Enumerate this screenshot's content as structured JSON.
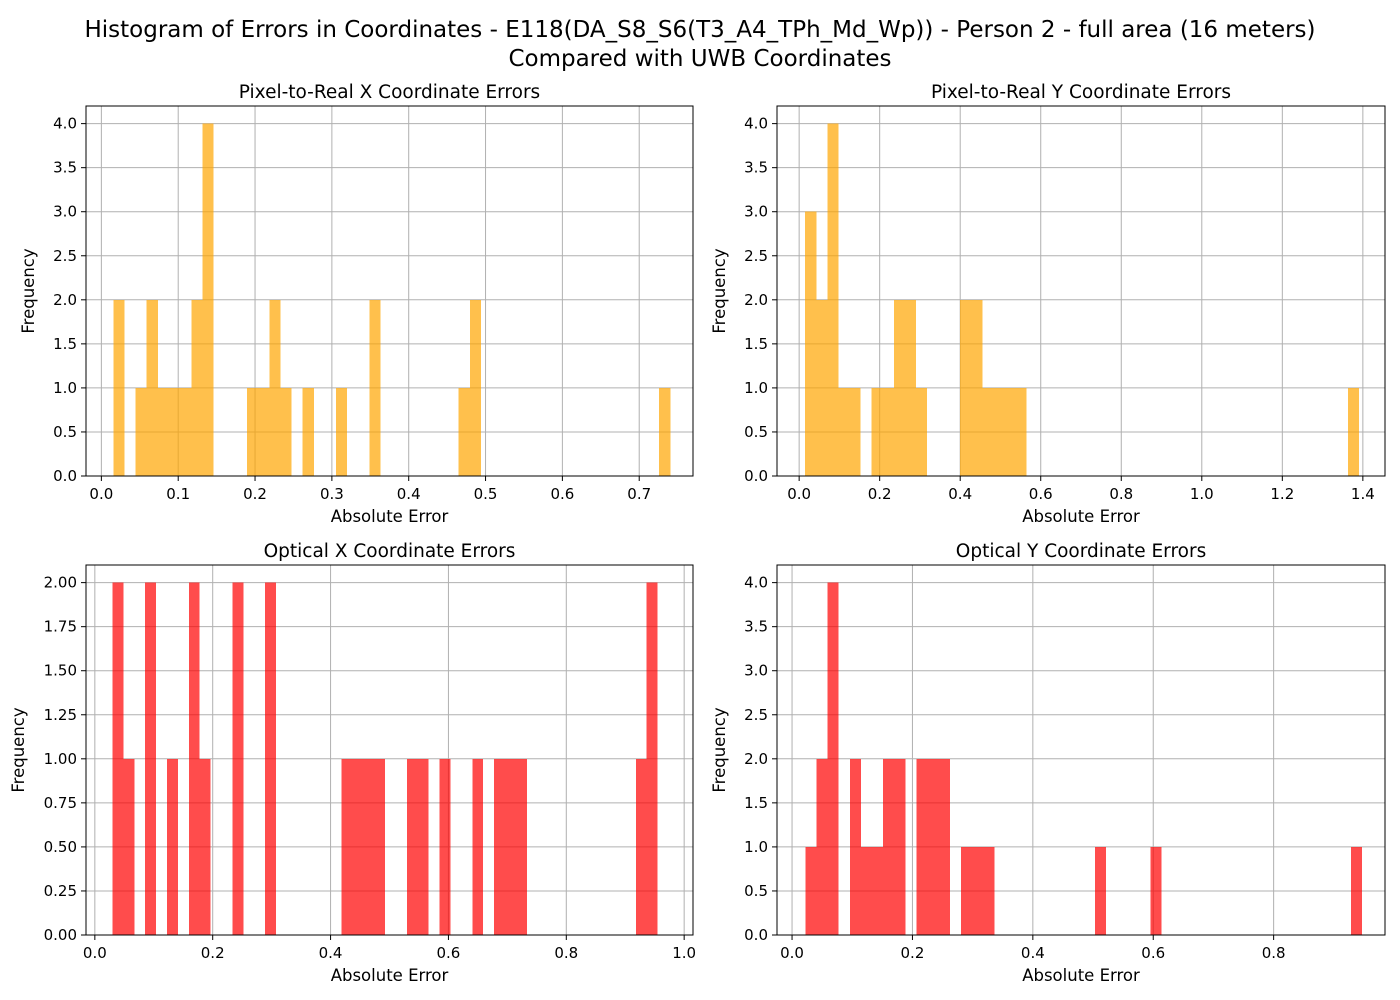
{
  "figure": {
    "title_line1": "Histogram of Errors in Coordinates - E118(DA_S8_S6(T3_A4_TPh_Md_Wp)) - Person 2 - full area (16 meters)",
    "title_line2": "Compared with UWB Coordinates"
  },
  "chart_data": [
    {
      "type": "bar",
      "title": "Pixel-to-Real X Coordinate Errors",
      "xlabel": "Absolute Error",
      "ylabel": "Frequency",
      "color": "#FFA500",
      "opacity": 0.7,
      "grid": true,
      "xlim": [
        -0.02,
        0.77
      ],
      "ylim": [
        0,
        4.2
      ],
      "xticks": [
        0.0,
        0.1,
        0.2,
        0.3,
        0.4,
        0.5,
        0.6,
        0.7
      ],
      "xtick_labels": [
        "0.0",
        "0.1",
        "0.2",
        "0.3",
        "0.4",
        "0.5",
        "0.6",
        "0.7"
      ],
      "yticks": [
        0,
        0.5,
        1.0,
        1.5,
        2.0,
        2.5,
        3.0,
        3.5,
        4.0
      ],
      "ytick_labels": [
        "0.0",
        "0.5",
        "1.0",
        "1.5",
        "2.0",
        "2.5",
        "3.0",
        "3.5",
        "4.0"
      ],
      "bins": [
        {
          "x0": 0.0155,
          "x1": 0.03,
          "count": 2
        },
        {
          "x0": 0.0445,
          "x1": 0.059,
          "count": 1
        },
        {
          "x0": 0.059,
          "x1": 0.0735,
          "count": 2
        },
        {
          "x0": 0.0735,
          "x1": 0.088,
          "count": 1
        },
        {
          "x0": 0.088,
          "x1": 0.1025,
          "count": 1
        },
        {
          "x0": 0.1025,
          "x1": 0.117,
          "count": 1
        },
        {
          "x0": 0.117,
          "x1": 0.1315,
          "count": 2
        },
        {
          "x0": 0.1315,
          "x1": 0.146,
          "count": 4
        },
        {
          "x0": 0.1895,
          "x1": 0.204,
          "count": 1
        },
        {
          "x0": 0.204,
          "x1": 0.2185,
          "count": 1
        },
        {
          "x0": 0.2185,
          "x1": 0.233,
          "count": 2
        },
        {
          "x0": 0.233,
          "x1": 0.2475,
          "count": 1
        },
        {
          "x0": 0.262,
          "x1": 0.2765,
          "count": 1
        },
        {
          "x0": 0.3055,
          "x1": 0.32,
          "count": 1
        },
        {
          "x0": 0.349,
          "x1": 0.3635,
          "count": 2
        },
        {
          "x0": 0.465,
          "x1": 0.4795,
          "count": 1
        },
        {
          "x0": 0.4795,
          "x1": 0.494,
          "count": 2
        },
        {
          "x0": 0.726,
          "x1": 0.7405,
          "count": 1
        }
      ]
    },
    {
      "type": "bar",
      "title": "Pixel-to-Real Y Coordinate Errors",
      "xlabel": "Absolute Error",
      "ylabel": "Frequency",
      "color": "#FFA500",
      "opacity": 0.7,
      "grid": true,
      "xlim": [
        -0.055,
        1.455
      ],
      "ylim": [
        0,
        4.2
      ],
      "xticks": [
        0.0,
        0.2,
        0.4,
        0.6,
        0.8,
        1.0,
        1.2,
        1.4
      ],
      "xtick_labels": [
        "0.0",
        "0.2",
        "0.4",
        "0.6",
        "0.8",
        "1.0",
        "1.2",
        "1.4"
      ],
      "yticks": [
        0,
        0.5,
        1.0,
        1.5,
        2.0,
        2.5,
        3.0,
        3.5,
        4.0
      ],
      "ytick_labels": [
        "0.0",
        "0.5",
        "1.0",
        "1.5",
        "2.0",
        "2.5",
        "3.0",
        "3.5",
        "4.0"
      ],
      "bins": [
        {
          "x0": 0.015,
          "x1": 0.0425,
          "count": 3
        },
        {
          "x0": 0.0425,
          "x1": 0.07,
          "count": 2
        },
        {
          "x0": 0.07,
          "x1": 0.0975,
          "count": 4
        },
        {
          "x0": 0.0975,
          "x1": 0.125,
          "count": 1
        },
        {
          "x0": 0.125,
          "x1": 0.1525,
          "count": 1
        },
        {
          "x0": 0.18,
          "x1": 0.2075,
          "count": 1
        },
        {
          "x0": 0.2075,
          "x1": 0.235,
          "count": 1
        },
        {
          "x0": 0.235,
          "x1": 0.2625,
          "count": 2
        },
        {
          "x0": 0.2625,
          "x1": 0.29,
          "count": 2
        },
        {
          "x0": 0.29,
          "x1": 0.3175,
          "count": 1
        },
        {
          "x0": 0.4,
          "x1": 0.4275,
          "count": 2
        },
        {
          "x0": 0.4275,
          "x1": 0.455,
          "count": 2
        },
        {
          "x0": 0.455,
          "x1": 0.4825,
          "count": 1
        },
        {
          "x0": 0.4825,
          "x1": 0.51,
          "count": 1
        },
        {
          "x0": 0.51,
          "x1": 0.5375,
          "count": 1
        },
        {
          "x0": 0.5375,
          "x1": 0.565,
          "count": 1
        },
        {
          "x0": 1.3625,
          "x1": 1.39,
          "count": 1
        }
      ]
    },
    {
      "type": "bar",
      "title": "Optical X Coordinate Errors",
      "xlabel": "Absolute Error",
      "ylabel": "Frequency",
      "color": "#FF0000",
      "opacity": 0.7,
      "grid": true,
      "xlim": [
        -0.015,
        1.015
      ],
      "ylim": [
        0,
        2.1
      ],
      "xticks": [
        0.0,
        0.2,
        0.4,
        0.6,
        0.8,
        1.0
      ],
      "xtick_labels": [
        "0.0",
        "0.2",
        "0.4",
        "0.6",
        "0.8",
        "1.0"
      ],
      "yticks": [
        0,
        0.25,
        0.5,
        0.75,
        1.0,
        1.25,
        1.5,
        1.75,
        2.0
      ],
      "ytick_labels": [
        "0.00",
        "0.25",
        "0.50",
        "0.75",
        "1.00",
        "1.25",
        "1.50",
        "1.75",
        "2.00"
      ],
      "bins": [
        {
          "x0": 0.03,
          "x1": 0.0485,
          "count": 2
        },
        {
          "x0": 0.0485,
          "x1": 0.067,
          "count": 1
        },
        {
          "x0": 0.0855,
          "x1": 0.104,
          "count": 2
        },
        {
          "x0": 0.1225,
          "x1": 0.141,
          "count": 1
        },
        {
          "x0": 0.1595,
          "x1": 0.178,
          "count": 2
        },
        {
          "x0": 0.178,
          "x1": 0.1965,
          "count": 1
        },
        {
          "x0": 0.2335,
          "x1": 0.252,
          "count": 2
        },
        {
          "x0": 0.289,
          "x1": 0.3075,
          "count": 2
        },
        {
          "x0": 0.4185,
          "x1": 0.437,
          "count": 1
        },
        {
          "x0": 0.437,
          "x1": 0.4555,
          "count": 1
        },
        {
          "x0": 0.4555,
          "x1": 0.474,
          "count": 1
        },
        {
          "x0": 0.474,
          "x1": 0.4925,
          "count": 1
        },
        {
          "x0": 0.5295,
          "x1": 0.548,
          "count": 1
        },
        {
          "x0": 0.548,
          "x1": 0.5665,
          "count": 1
        },
        {
          "x0": 0.585,
          "x1": 0.6035,
          "count": 1
        },
        {
          "x0": 0.6405,
          "x1": 0.659,
          "count": 1
        },
        {
          "x0": 0.6775,
          "x1": 0.696,
          "count": 1
        },
        {
          "x0": 0.696,
          "x1": 0.7145,
          "count": 1
        },
        {
          "x0": 0.7145,
          "x1": 0.733,
          "count": 1
        },
        {
          "x0": 0.918,
          "x1": 0.9365,
          "count": 1
        },
        {
          "x0": 0.9365,
          "x1": 0.955,
          "count": 2
        }
      ]
    },
    {
      "type": "bar",
      "title": "Optical Y Coordinate Errors",
      "xlabel": "Absolute Error",
      "ylabel": "Frequency",
      "color": "#FF0000",
      "opacity": 0.7,
      "grid": true,
      "xlim": [
        -0.025,
        0.985
      ],
      "ylim": [
        0,
        4.2
      ],
      "xticks": [
        0.0,
        0.2,
        0.4,
        0.6,
        0.8
      ],
      "xtick_labels": [
        "0.0",
        "0.2",
        "0.4",
        "0.6",
        "0.8"
      ],
      "yticks": [
        0,
        0.5,
        1.0,
        1.5,
        2.0,
        2.5,
        3.0,
        3.5,
        4.0
      ],
      "ytick_labels": [
        "0.0",
        "0.5",
        "1.0",
        "1.5",
        "2.0",
        "2.5",
        "3.0",
        "3.5",
        "4.0"
      ],
      "bins": [
        {
          "x0": 0.022,
          "x1": 0.0405,
          "count": 1
        },
        {
          "x0": 0.0405,
          "x1": 0.059,
          "count": 2
        },
        {
          "x0": 0.059,
          "x1": 0.0775,
          "count": 4
        },
        {
          "x0": 0.096,
          "x1": 0.1145,
          "count": 2
        },
        {
          "x0": 0.1145,
          "x1": 0.133,
          "count": 1
        },
        {
          "x0": 0.133,
          "x1": 0.1515,
          "count": 1
        },
        {
          "x0": 0.1515,
          "x1": 0.17,
          "count": 2
        },
        {
          "x0": 0.17,
          "x1": 0.1885,
          "count": 2
        },
        {
          "x0": 0.207,
          "x1": 0.2255,
          "count": 2
        },
        {
          "x0": 0.2255,
          "x1": 0.244,
          "count": 2
        },
        {
          "x0": 0.244,
          "x1": 0.2625,
          "count": 2
        },
        {
          "x0": 0.281,
          "x1": 0.2995,
          "count": 1
        },
        {
          "x0": 0.2995,
          "x1": 0.318,
          "count": 1
        },
        {
          "x0": 0.318,
          "x1": 0.3365,
          "count": 1
        },
        {
          "x0": 0.503,
          "x1": 0.5215,
          "count": 1
        },
        {
          "x0": 0.5955,
          "x1": 0.614,
          "count": 1
        },
        {
          "x0": 0.9285,
          "x1": 0.947,
          "count": 1
        }
      ]
    }
  ]
}
